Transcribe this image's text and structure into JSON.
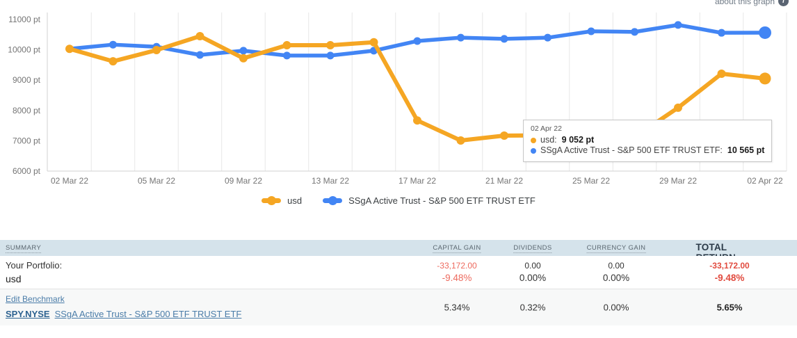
{
  "about_link": {
    "label": "about this graph",
    "icon": "info-icon"
  },
  "chart_data": {
    "type": "line",
    "title": "",
    "xlabel": "",
    "ylabel": "",
    "unit": "pt",
    "ylim": [
      6000,
      11250
    ],
    "grid": "vertical",
    "legend_position": "bottom",
    "y_ticks": [
      6000,
      7000,
      8000,
      9000,
      10000,
      11000
    ],
    "y_tick_suffix": " pt",
    "x_tick_labels": [
      "02 Mar 22",
      "05 Mar 22",
      "09 Mar 22",
      "13 Mar 22",
      "17 Mar 22",
      "21 Mar 22",
      "25 Mar 22",
      "29 Mar 22",
      "02 Apr 22"
    ],
    "series": [
      {
        "name": "usd",
        "color": "#F5A623",
        "values": [
          10030,
          9620,
          9990,
          10450,
          9720,
          10150,
          10150,
          10250,
          7670,
          7010,
          7170,
          7180,
          7150,
          7120,
          8090,
          9210,
          9052
        ]
      },
      {
        "name": "SSgA Active Trust - S&P 500 ETF TRUST ETF",
        "color": "#4285F4",
        "values": [
          10030,
          10170,
          10100,
          9830,
          9970,
          9810,
          9810,
          9970,
          10290,
          10400,
          10360,
          10400,
          10610,
          10590,
          10820,
          10560,
          10565
        ]
      }
    ]
  },
  "tooltip": {
    "date": "02 Apr 22",
    "entries": [
      {
        "label": "usd:",
        "value": "9 052 pt",
        "color": "#F5A623"
      },
      {
        "label": "SSgA Active Trust - S&P 500 ETF TRUST ETF:",
        "value": "10 565 pt",
        "color": "#4285F4"
      }
    ]
  },
  "legend": {
    "items": [
      {
        "label": "usd",
        "color": "#F5A623"
      },
      {
        "label": "SSgA Active Trust - S&P 500 ETF TRUST ETF",
        "color": "#4285F4"
      }
    ]
  },
  "summary_table": {
    "headers": {
      "summary": "SUMMARY",
      "capital_gain": "CAPITAL GAIN",
      "dividends": "DIVIDENDS",
      "currency_gain": "CURRENCY GAIN",
      "total_return": "TOTAL RETURN"
    },
    "portfolio_row": {
      "label": "Your Portfolio:",
      "name": "usd",
      "capital_gain": {
        "amount": "-33,172.00",
        "percent": "-9.48%"
      },
      "dividends": {
        "amount": "0.00",
        "percent": "0.00%"
      },
      "currency_gain": {
        "amount": "0.00",
        "percent": "0.00%"
      },
      "total_return": {
        "amount": "-33,172.00",
        "percent": "-9.48%"
      }
    },
    "benchmark_row": {
      "edit_link": "Edit Benchmark",
      "ticker": "SPY.NYSE",
      "name": "SSgA Active Trust - S&P 500 ETF TRUST ETF",
      "capital_gain": "5.34%",
      "dividends": "0.32%",
      "currency_gain": "0.00%",
      "total_return": "5.65%"
    }
  },
  "colors": {
    "series_usd": "#F5A623",
    "series_benchmark": "#4285F4",
    "negative": "#ed6a5e",
    "negative_strong": "#e14b3f",
    "header_bg": "#d5e3eb",
    "gridline": "#e7e7e7"
  }
}
